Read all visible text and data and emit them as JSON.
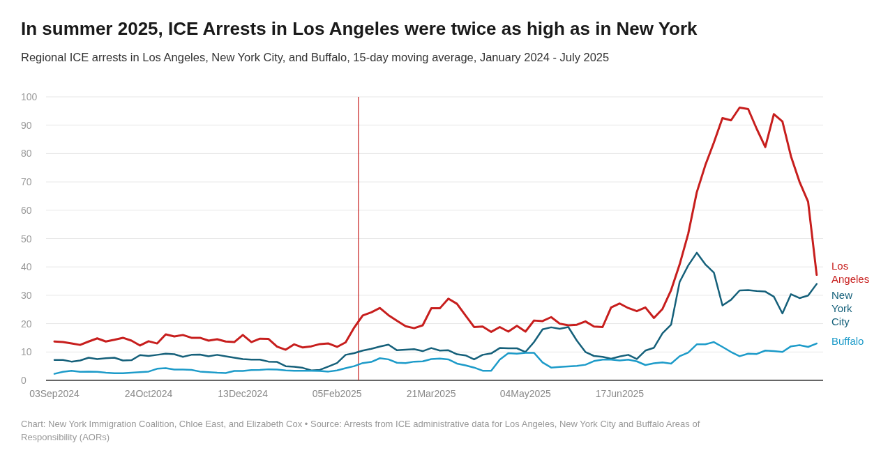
{
  "chart_data": {
    "type": "line",
    "title": "In summer 2025, ICE Arrests in Los Angeles were twice as high as in New York",
    "subtitle": "Regional ICE arrests in Los Angeles, New York City, and Buffalo, 15-day moving average, January 2024 - July 2025",
    "annotations": [
      "Chart: New York Immigration Coalition, Chloe East, and Elizabeth Cox • Source: Arrests from ICE administrative data for Los Angeles, New York City and Buffalo Areas of Responsibility (AORs)"
    ],
    "categories": [
      "03Sep2024",
      null,
      null,
      null,
      null,
      null,
      null,
      null,
      null,
      null,
      null,
      "24Oct2024",
      null,
      null,
      null,
      null,
      null,
      null,
      null,
      null,
      null,
      null,
      "13Dec2024",
      null,
      null,
      null,
      null,
      null,
      null,
      null,
      null,
      null,
      null,
      "05Feb2025",
      null,
      null,
      null,
      null,
      null,
      null,
      null,
      null,
      null,
      null,
      "21Mar2025",
      null,
      null,
      null,
      null,
      null,
      null,
      null,
      null,
      null,
      null,
      "04May2025",
      null,
      null,
      null,
      null,
      null,
      null,
      null,
      null,
      null,
      null,
      "17Jun2025",
      null,
      null,
      null,
      null,
      null,
      null,
      null,
      null,
      null,
      null,
      null,
      null,
      null,
      null,
      null,
      null,
      null,
      null,
      null,
      null,
      null,
      null,
      null
    ],
    "ylim": [
      0,
      100
    ],
    "yticks": [
      0,
      10,
      20,
      30,
      40,
      50,
      60,
      70,
      80,
      90,
      100
    ],
    "grid": "y",
    "legend": false,
    "marker": "none",
    "line_style": "solid",
    "series": [
      {
        "name": "Los Angeles",
        "color": "#c71e1d",
        "values": [
          13.7,
          13.5,
          13,
          12.5,
          13.7,
          14.8,
          13.7,
          14.3,
          15,
          14,
          12.3,
          13.8,
          13,
          16.2,
          15.5,
          16,
          15,
          15,
          14,
          14.5,
          13.7,
          13.5,
          16,
          13.5,
          14.7,
          14.6,
          11.9,
          10.8,
          12.7,
          11.6,
          12,
          12.8,
          13,
          11.8,
          13.4,
          18.6,
          22.9,
          24,
          25.5,
          23,
          21,
          19.1,
          18.4,
          19.4,
          25.4,
          25.4,
          28.8,
          27,
          22.9,
          18.8,
          19,
          17.1,
          18.8,
          17.2,
          19.2,
          17.2,
          21.1,
          20.9,
          22.3,
          20,
          19.4,
          19.6,
          20.8,
          19,
          18.8,
          25.7,
          27.1,
          25.5,
          24.4,
          25.7,
          22,
          25.2,
          31.8,
          40.9,
          51.7,
          66.3,
          75.9,
          83.9,
          92.5,
          91.7,
          96.2,
          95.7,
          88.7,
          82.3,
          93.9,
          91.3,
          79,
          70,
          63,
          37.2
        ]
      },
      {
        "name": "New York City",
        "color": "#15607a",
        "values": [
          7.2,
          7.2,
          6.6,
          7,
          8,
          7.5,
          7.8,
          8,
          7,
          7.1,
          8.9,
          8.6,
          9,
          9.4,
          9.2,
          8.3,
          9,
          9.1,
          8.5,
          9,
          8.5,
          8,
          7.5,
          7.3,
          7.3,
          6.6,
          6.5,
          5,
          4.8,
          4.4,
          3.5,
          3.7,
          4.9,
          6.1,
          9,
          9.6,
          10.5,
          11.1,
          11.9,
          12.6,
          10.6,
          10.8,
          11,
          10.3,
          11.4,
          10.5,
          10.6,
          9.2,
          8.8,
          7.4,
          9,
          9.5,
          11.4,
          11.3,
          11.3,
          10,
          13.5,
          18,
          18.7,
          18.2,
          18.8,
          14,
          10,
          8.6,
          8.3,
          7.6,
          8.4,
          9,
          7.5,
          10.5,
          11.5,
          16.6,
          19.6,
          34.7,
          40.5,
          45,
          40.9,
          38,
          26.4,
          28.4,
          31.7,
          31.8,
          31.5,
          31.3,
          29.5,
          23.6,
          30.4,
          29,
          29.9,
          34
        ]
      },
      {
        "name": "Buffalo",
        "color": "#1d9bc9",
        "values": [
          2.3,
          3,
          3.4,
          3,
          3.1,
          3,
          2.7,
          2.5,
          2.5,
          2.7,
          2.9,
          3.1,
          4.1,
          4.3,
          3.8,
          3.8,
          3.7,
          3.1,
          2.9,
          2.7,
          2.6,
          3.3,
          3.3,
          3.6,
          3.7,
          3.9,
          3.8,
          3.5,
          3.4,
          3.4,
          3.4,
          3.3,
          3.1,
          3.5,
          4.3,
          5,
          6.1,
          6.5,
          7.8,
          7.4,
          6.2,
          6.1,
          6.6,
          6.7,
          7.5,
          7.7,
          7.4,
          5.9,
          5.3,
          4.5,
          3.4,
          3.4,
          7.3,
          9.6,
          9.4,
          9.7,
          9.7,
          6.3,
          4.5,
          4.7,
          4.9,
          5.1,
          5.5,
          6.8,
          7.3,
          7.3,
          7,
          7.3,
          6.7,
          5.4,
          6,
          6.3,
          5.9,
          8.5,
          9.8,
          12.7,
          12.7,
          13.5,
          11.8,
          10,
          8.5,
          9.4,
          9.3,
          10.5,
          10.3,
          10,
          12,
          12.4,
          11.8,
          13
        ]
      }
    ]
  }
}
